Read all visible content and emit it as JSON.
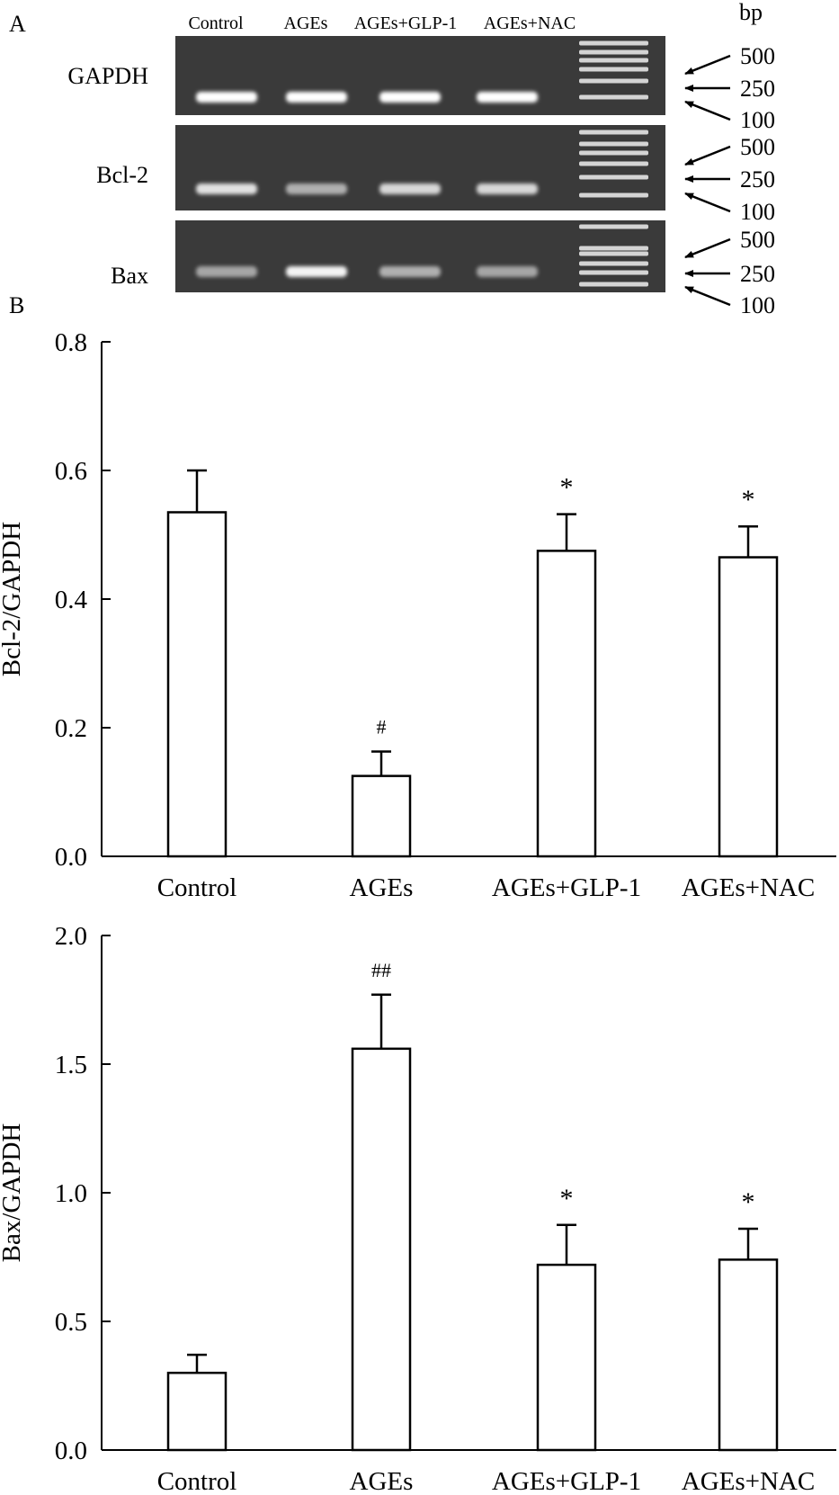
{
  "panel_a": {
    "label": "A",
    "bp_label": "bp",
    "lanes": [
      "Control",
      "AGEs",
      "AGEs+GLP-1",
      "AGEs+NAC"
    ],
    "marker_labels": [
      "500",
      "250",
      "100"
    ],
    "gels": [
      {
        "name": "GAPDH",
        "band_intensity": [
          1.0,
          1.0,
          1.0,
          1.0
        ]
      },
      {
        "name": "Bcl-2",
        "band_intensity": [
          0.85,
          0.6,
          0.8,
          0.8
        ]
      },
      {
        "name": "Bax",
        "band_intensity": [
          0.55,
          0.95,
          0.6,
          0.55
        ]
      }
    ],
    "colors": {
      "gel": "#3a3a3a",
      "band": "#ffffff"
    }
  },
  "panel_b": {
    "label": "B"
  },
  "chart_data": [
    {
      "type": "bar",
      "categories": [
        "Control",
        "AGEs",
        "AGEs+GLP-1",
        "AGEs+NAC"
      ],
      "values": [
        0.535,
        0.125,
        0.475,
        0.465
      ],
      "errors": [
        0.065,
        0.038,
        0.057,
        0.048
      ],
      "annotations": [
        "",
        "#",
        "*",
        "*"
      ],
      "ylabel": "Bcl-2/GAPDH",
      "ylim": [
        0,
        0.8
      ],
      "yticks": [
        "0.0",
        "0.2",
        "0.4",
        "0.6",
        "0.8"
      ],
      "ytick_values": [
        0,
        0.2,
        0.4,
        0.6,
        0.8
      ]
    },
    {
      "type": "bar",
      "categories": [
        "Control",
        "AGEs",
        "AGEs+GLP-1",
        "AGEs+NAC"
      ],
      "values": [
        0.3,
        1.56,
        0.72,
        0.74
      ],
      "errors": [
        0.07,
        0.21,
        0.155,
        0.12
      ],
      "annotations": [
        "",
        "##",
        "*",
        "*"
      ],
      "ylabel": "Bax/GAPDH",
      "ylim": [
        0,
        2.0
      ],
      "yticks": [
        "0.0",
        "0.5",
        "1.0",
        "1.5",
        "2.0"
      ],
      "ytick_values": [
        0,
        0.5,
        1.0,
        1.5,
        2.0
      ]
    }
  ]
}
